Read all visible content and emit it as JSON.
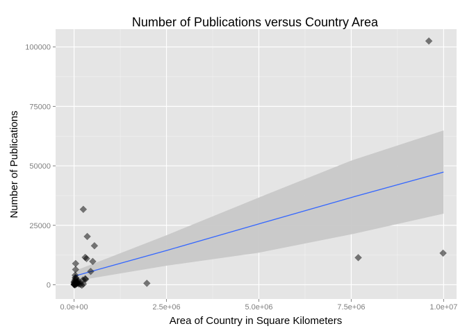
{
  "chart_data": {
    "type": "scatter",
    "title": "Number of Publications versus Country Area",
    "xlabel": "Area of Country in Square Kilometers",
    "ylabel": "Number of Publications",
    "xlim": [
      -500000,
      10350000
    ],
    "ylim": [
      -6000,
      107500
    ],
    "x_ticks": [
      0,
      2500000,
      5000000,
      7500000,
      10000000
    ],
    "x_tick_labels": [
      "0.0e+00",
      "2.5e+06",
      "5.0e+06",
      "7.5e+06",
      "1.0e+07"
    ],
    "y_ticks": [
      0,
      25000,
      50000,
      75000,
      100000
    ],
    "y_tick_labels": [
      "0",
      "25000",
      "50000",
      "75000",
      "100000"
    ],
    "grid": true,
    "background": "#e5e5e5",
    "point_color": "#000000",
    "point_shape": "diamond",
    "series": [
      {
        "points": [
          [
            9600000,
            102500
          ],
          [
            7690000,
            11400
          ],
          [
            9985000,
            13300
          ],
          [
            1970000,
            600
          ],
          [
            250000,
            31700
          ],
          [
            357000,
            20300
          ],
          [
            551000,
            16400
          ],
          [
            301000,
            11500
          ],
          [
            338000,
            11000
          ],
          [
            505000,
            9800
          ],
          [
            450000,
            5600
          ],
          [
            312000,
            2300
          ],
          [
            238000,
            2000
          ],
          [
            301000,
            2500
          ],
          [
            93000,
            1400
          ],
          [
            130000,
            300
          ],
          [
            83000,
            600
          ],
          [
            42000,
            8900
          ],
          [
            41000,
            6400
          ],
          [
            30000,
            4000
          ],
          [
            33000,
            3000
          ],
          [
            30000,
            2200
          ],
          [
            20000,
            1600
          ],
          [
            22000,
            700
          ],
          [
            10000,
            300
          ],
          [
            5000,
            100
          ],
          [
            1000,
            50
          ],
          [
            2000,
            1200
          ],
          [
            50000,
            2800
          ],
          [
            60000,
            600
          ],
          [
            65000,
            400
          ],
          [
            78000,
            1100
          ],
          [
            110000,
            700
          ],
          [
            120000,
            1500
          ],
          [
            170000,
            200
          ],
          [
            210000,
            -200
          ],
          [
            250000,
            300
          ],
          [
            20000,
            -100
          ],
          [
            15000,
            600
          ],
          [
            8000,
            900
          ],
          [
            12000,
            200
          ],
          [
            40000,
            100
          ]
        ]
      }
    ],
    "fit": {
      "method": "linear",
      "color": "#3366ff",
      "ribbon_color": "#c8c8c8",
      "x": [
        0,
        2500000,
        5000000,
        7500000,
        10000000
      ],
      "y": [
        3600,
        14400,
        25600,
        36700,
        47400
      ],
      "lower": [
        1500,
        8000,
        13500,
        21200,
        29900
      ],
      "upper": [
        5700,
        20800,
        36700,
        52200,
        64900
      ]
    }
  }
}
